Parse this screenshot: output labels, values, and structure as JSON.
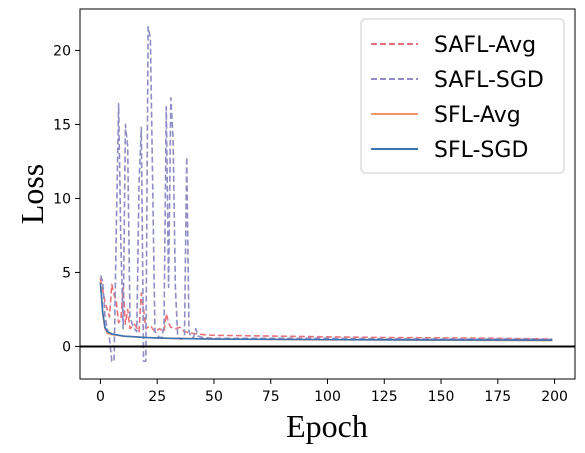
{
  "chart_data": {
    "type": "line",
    "title": "",
    "xlabel": "Epoch",
    "ylabel": "Loss",
    "xlim": [
      -9,
      209
    ],
    "ylim": [
      -2.2,
      22.8
    ],
    "xticks": [
      0,
      25,
      50,
      75,
      100,
      125,
      150,
      175,
      200
    ],
    "yticks": [
      0,
      5,
      10,
      15,
      20
    ],
    "grid": false,
    "legend_position": "top-right",
    "reference_line": {
      "y": 0,
      "color": "#000000"
    },
    "series": [
      {
        "name": "SAFL-Avg",
        "color": "#e8727a",
        "dash": "dashed",
        "points": [
          [
            0,
            4.6
          ],
          [
            2,
            3.0
          ],
          [
            4,
            2.0
          ],
          [
            5,
            4.2
          ],
          [
            6,
            3.5
          ],
          [
            7,
            3.0
          ],
          [
            8,
            1.6
          ],
          [
            9,
            1.8
          ],
          [
            10,
            4.0
          ],
          [
            11,
            1.5
          ],
          [
            12,
            2.5
          ],
          [
            13,
            1.2
          ],
          [
            15,
            1.5
          ],
          [
            17,
            1.0
          ],
          [
            18,
            3.6
          ],
          [
            19,
            2.5
          ],
          [
            20,
            1.2
          ],
          [
            22,
            1.4
          ],
          [
            24,
            1.0
          ],
          [
            26,
            1.2
          ],
          [
            28,
            1.0
          ],
          [
            29,
            2.2
          ],
          [
            30,
            1.6
          ],
          [
            31,
            1.3
          ],
          [
            33,
            1.2
          ],
          [
            35,
            1.3
          ],
          [
            37,
            1.0
          ],
          [
            40,
            0.9
          ],
          [
            45,
            0.8
          ],
          [
            50,
            0.75
          ],
          [
            75,
            0.7
          ],
          [
            100,
            0.65
          ],
          [
            125,
            0.6
          ],
          [
            150,
            0.58
          ],
          [
            175,
            0.55
          ],
          [
            199,
            0.5
          ]
        ]
      },
      {
        "name": "SAFL-SGD",
        "color": "#8e8dc4",
        "dash": "dashed",
        "points": [
          [
            0,
            4.8
          ],
          [
            1,
            4.4
          ],
          [
            2,
            2.0
          ],
          [
            3,
            1.2
          ],
          [
            4,
            0.5
          ],
          [
            5,
            -1.0
          ],
          [
            6,
            -1.0
          ],
          [
            7,
            8.0
          ],
          [
            8,
            16.4
          ],
          [
            9,
            7.0
          ],
          [
            10,
            1.2
          ],
          [
            11,
            15.0
          ],
          [
            12,
            13.5
          ],
          [
            13,
            2.0
          ],
          [
            14,
            1.5
          ],
          [
            15,
            1.2
          ],
          [
            16,
            1.0
          ],
          [
            17,
            11.0
          ],
          [
            18,
            14.8
          ],
          [
            19,
            -1.0
          ],
          [
            20,
            -1.0
          ],
          [
            21,
            21.6
          ],
          [
            22,
            20.8
          ],
          [
            23,
            11.0
          ],
          [
            24,
            1.0
          ],
          [
            25,
            0.8
          ],
          [
            26,
            0.6
          ],
          [
            27,
            0.6
          ],
          [
            28,
            1.4
          ],
          [
            29,
            16.2
          ],
          [
            30,
            4.0
          ],
          [
            31,
            16.8
          ],
          [
            32,
            14.0
          ],
          [
            33,
            4.0
          ],
          [
            34,
            0.8
          ],
          [
            35,
            0.5
          ],
          [
            36,
            0.5
          ],
          [
            37,
            0.6
          ],
          [
            38,
            12.8
          ],
          [
            39,
            1.0
          ],
          [
            40,
            0.6
          ],
          [
            41,
            0.6
          ],
          [
            42,
            1.2
          ],
          [
            43,
            0.7
          ],
          [
            45,
            0.6
          ],
          [
            50,
            0.55
          ],
          [
            75,
            0.55
          ],
          [
            100,
            0.55
          ],
          [
            125,
            0.52
          ],
          [
            150,
            0.5
          ],
          [
            175,
            0.5
          ],
          [
            199,
            0.48
          ]
        ]
      },
      {
        "name": "SFL-Avg",
        "color": "#f5956a",
        "dash": "solid",
        "points": [
          [
            0,
            4.4
          ],
          [
            1,
            2.2
          ],
          [
            2,
            1.2
          ],
          [
            3,
            0.9
          ],
          [
            5,
            0.8
          ],
          [
            10,
            0.7
          ],
          [
            20,
            0.6
          ],
          [
            30,
            0.55
          ],
          [
            50,
            0.5
          ],
          [
            100,
            0.45
          ],
          [
            150,
            0.42
          ],
          [
            199,
            0.4
          ]
        ]
      },
      {
        "name": "SFL-SGD",
        "color": "#3b72b0",
        "dash": "solid",
        "points": [
          [
            0,
            4.3
          ],
          [
            1,
            2.3
          ],
          [
            2,
            1.3
          ],
          [
            3,
            1.0
          ],
          [
            5,
            0.85
          ],
          [
            10,
            0.7
          ],
          [
            20,
            0.6
          ],
          [
            30,
            0.55
          ],
          [
            50,
            0.5
          ],
          [
            100,
            0.46
          ],
          [
            150,
            0.44
          ],
          [
            199,
            0.42
          ]
        ]
      }
    ]
  }
}
